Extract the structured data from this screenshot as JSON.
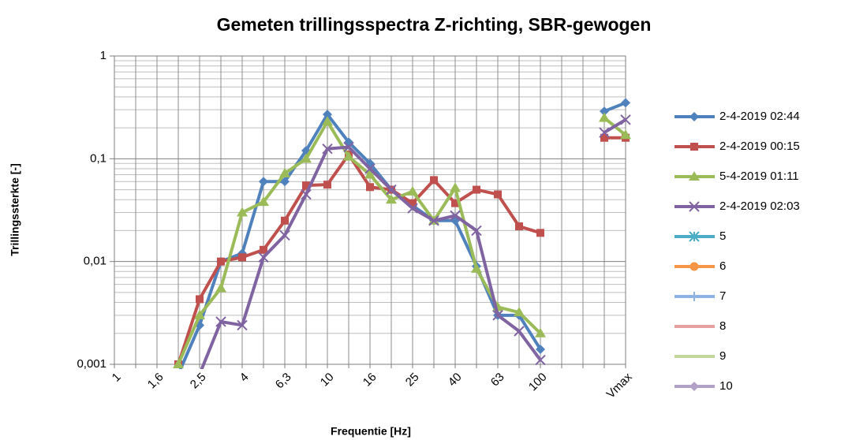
{
  "chart_data": {
    "type": "line",
    "title": "Gemeten trillingsspectra Z-richting, SBR-gewogen",
    "x_label": "Frequentie [Hz]",
    "y_label": "Trillingssterkte [-]",
    "categories": [
      "1",
      null,
      "1,6",
      null,
      "2,5",
      null,
      "4",
      null,
      "6,3",
      null,
      "10",
      null,
      "16",
      null,
      "25",
      null,
      "40",
      null,
      "63",
      null,
      "100",
      null,
      null,
      null,
      "Vmax"
    ],
    "log_y": true,
    "ylim": [
      0.001,
      1
    ],
    "yticks": [
      {
        "value": 0.001,
        "label": "0,001"
      },
      {
        "value": 0.01,
        "label": "0,01"
      },
      {
        "value": 0.1,
        "label": "0,1"
      },
      1
    ],
    "grid": true,
    "minor_grid": true,
    "legend": "right",
    "series": [
      {
        "name": "2-4-2019 02:44",
        "color": "#4f81bd",
        "marker": "diamond",
        "values": [
          null,
          null,
          null,
          0.0008,
          0.0024,
          0.01,
          0.012,
          0.06,
          0.06,
          0.12,
          0.27,
          0.145,
          0.09,
          0.05,
          0.035,
          0.025,
          0.025,
          0.009,
          0.003,
          0.003,
          0.0014,
          null,
          null,
          0.29,
          0.35
        ]
      },
      {
        "name": "2-4-2019 00:15",
        "color": "#c0504d",
        "marker": "square",
        "values": [
          null,
          null,
          null,
          0.001,
          0.0043,
          0.01,
          0.011,
          0.013,
          0.025,
          0.055,
          0.056,
          0.11,
          0.053,
          0.05,
          0.037,
          0.062,
          0.037,
          0.05,
          0.045,
          0.022,
          0.019,
          null,
          null,
          0.16,
          0.16
        ]
      },
      {
        "name": "5-4-2019 01:11",
        "color": "#9bbb59",
        "marker": "triangle",
        "values": [
          null,
          null,
          null,
          0.001,
          0.003,
          0.0055,
          0.03,
          0.038,
          0.072,
          0.1,
          0.23,
          0.105,
          0.07,
          0.04,
          0.048,
          0.025,
          0.052,
          0.0085,
          0.0036,
          0.0032,
          0.002,
          null,
          null,
          0.25,
          0.17
        ]
      },
      {
        "name": "2-4-2019 02:03",
        "color": "#8064a2",
        "marker": "x",
        "values": [
          null,
          null,
          null,
          null,
          0.0008,
          0.0026,
          0.0024,
          0.011,
          0.018,
          0.045,
          0.125,
          0.13,
          0.08,
          0.05,
          0.033,
          0.025,
          0.028,
          0.02,
          0.003,
          0.0021,
          0.0011,
          null,
          null,
          0.18,
          0.24
        ]
      },
      {
        "name": "5",
        "color": "#4bacc6",
        "marker": "asterisk",
        "values": [
          null,
          null,
          null,
          null,
          null,
          null,
          null,
          null,
          null,
          null,
          null,
          null,
          null,
          null,
          null,
          null,
          null,
          null,
          null,
          null,
          null,
          null,
          null,
          null,
          null
        ]
      },
      {
        "name": "6",
        "color": "#f79646",
        "marker": "circle",
        "values": [
          null,
          null,
          null,
          null,
          null,
          null,
          null,
          null,
          null,
          null,
          null,
          null,
          null,
          null,
          null,
          null,
          null,
          null,
          null,
          null,
          null,
          null,
          null,
          null,
          null
        ]
      },
      {
        "name": "7",
        "color": "#8db3e2",
        "marker": "plus",
        "values": [
          null,
          null,
          null,
          null,
          null,
          null,
          null,
          null,
          null,
          null,
          null,
          null,
          null,
          null,
          null,
          null,
          null,
          null,
          null,
          null,
          null,
          null,
          null,
          null,
          null
        ]
      },
      {
        "name": "8",
        "color": "#e6a09f",
        "marker": "dash",
        "values": [
          null,
          null,
          null,
          null,
          null,
          null,
          null,
          null,
          null,
          null,
          null,
          null,
          null,
          null,
          null,
          null,
          null,
          null,
          null,
          null,
          null,
          null,
          null,
          null,
          null
        ]
      },
      {
        "name": "9",
        "color": "#c3d69b",
        "marker": "dash",
        "values": [
          null,
          null,
          null,
          null,
          null,
          null,
          null,
          null,
          null,
          null,
          null,
          null,
          null,
          null,
          null,
          null,
          null,
          null,
          null,
          null,
          null,
          null,
          null,
          null,
          null
        ]
      },
      {
        "name": "10",
        "color": "#b3a2c7",
        "marker": "diamond",
        "values": [
          null,
          null,
          null,
          null,
          null,
          null,
          null,
          null,
          null,
          null,
          null,
          null,
          null,
          null,
          null,
          null,
          null,
          null,
          null,
          null,
          null,
          null,
          null,
          null,
          null
        ]
      }
    ]
  }
}
